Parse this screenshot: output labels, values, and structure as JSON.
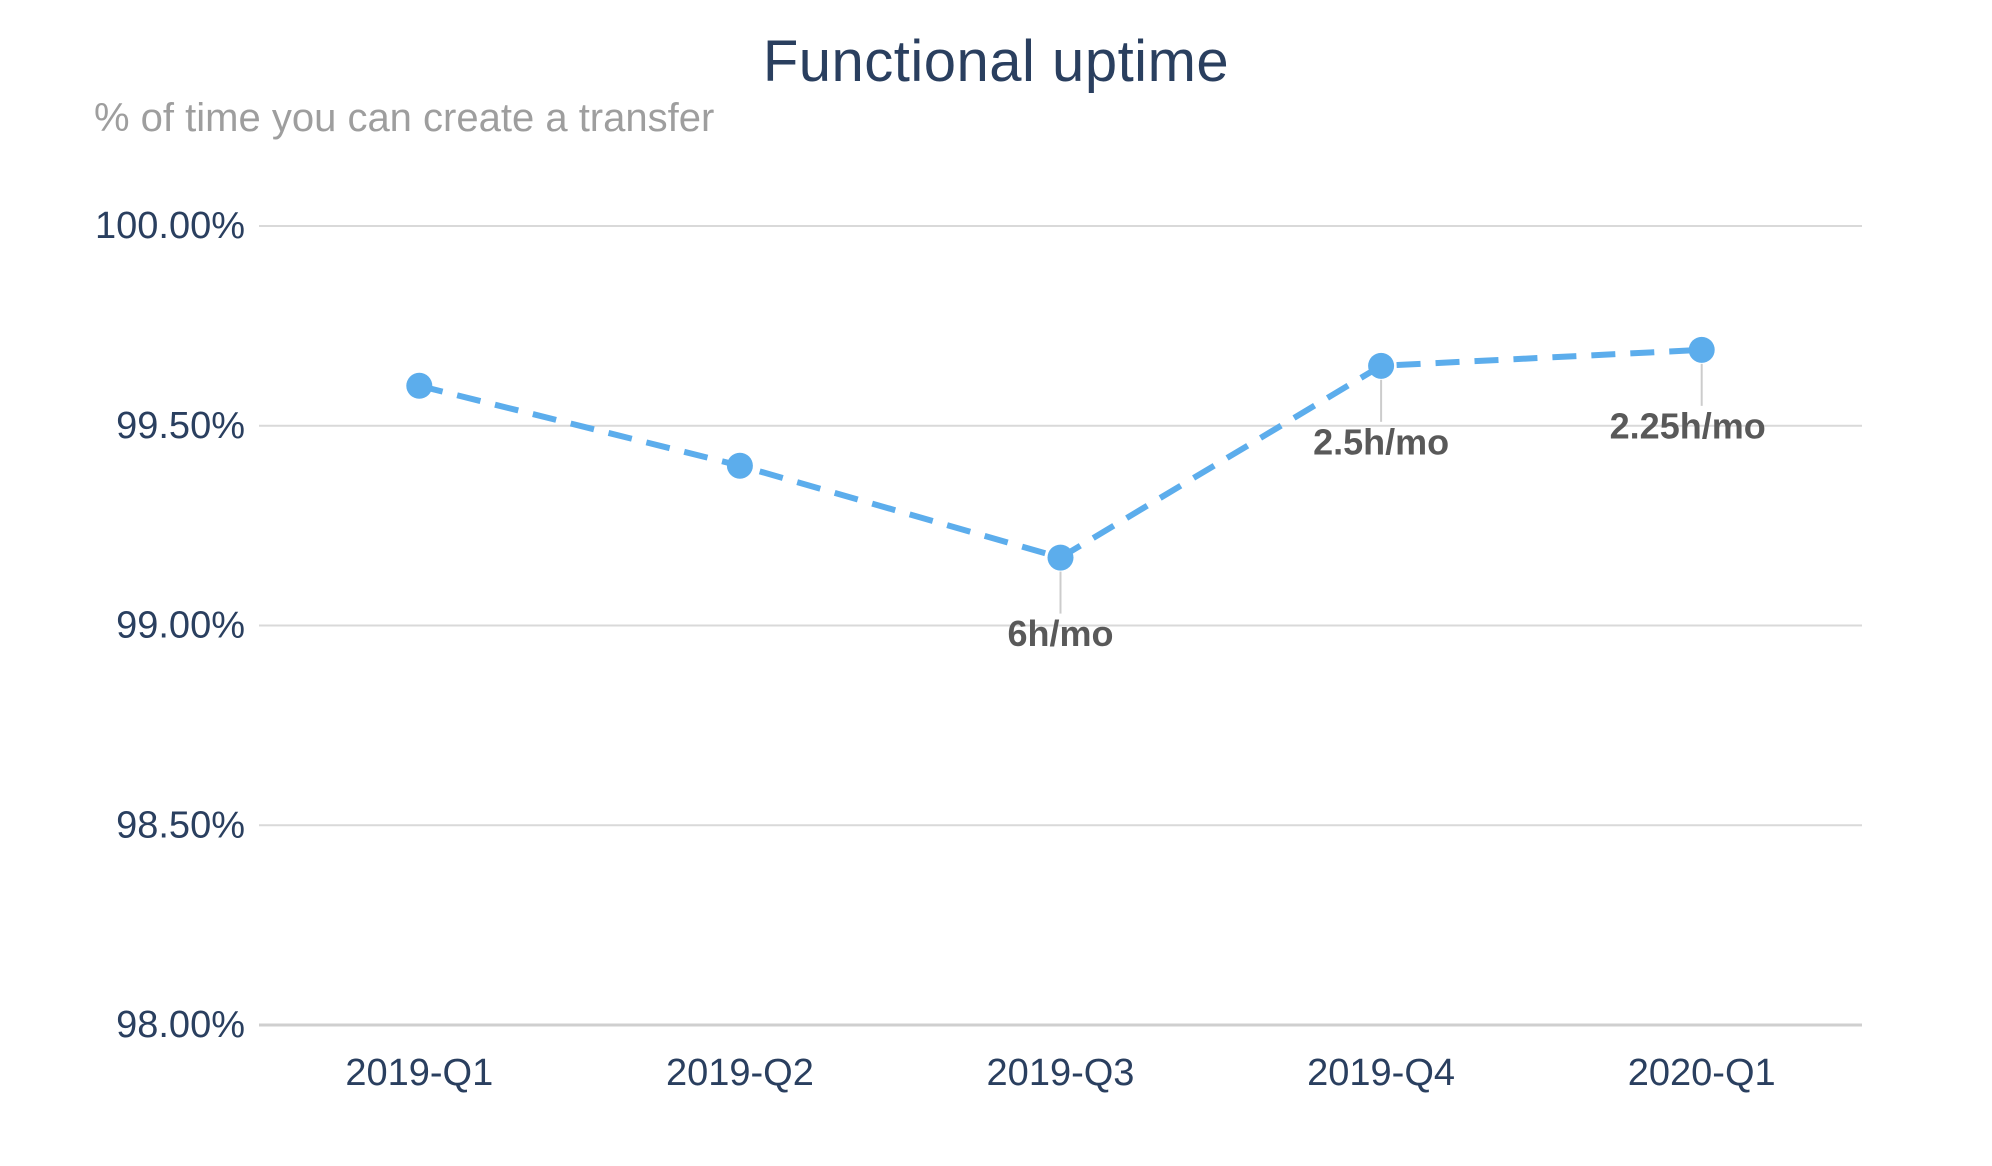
{
  "chart_data": {
    "type": "line",
    "title": "Functional uptime",
    "subtitle": "% of time you can create a transfer",
    "categories": [
      "2019-Q1",
      "2019-Q2",
      "2019-Q3",
      "2019-Q4",
      "2020-Q1"
    ],
    "series": [
      {
        "name": "Functional uptime",
        "values": [
          99.6,
          99.4,
          99.17,
          99.65,
          99.69
        ],
        "line_style": "dashed",
        "marker": "circle"
      }
    ],
    "annotations": [
      {
        "category": "2019-Q3",
        "text": "6h/mo",
        "dx": 0
      },
      {
        "category": "2019-Q4",
        "text": "2.5h/mo",
        "dx": 0
      },
      {
        "category": "2020-Q1",
        "text": "2.25h/mo",
        "dx": -14
      }
    ],
    "yticks": [
      {
        "value": 100.0,
        "label": "100.00%"
      },
      {
        "value": 99.5,
        "label": "99.50%"
      },
      {
        "value": 99.0,
        "label": "99.00%"
      },
      {
        "value": 98.5,
        "label": "98.50%"
      },
      {
        "value": 98.0,
        "label": "98.00%"
      }
    ],
    "ylim": [
      98.0,
      100.0
    ],
    "xlabel": "",
    "ylabel": "",
    "grid": true,
    "legend_position": "none",
    "colors": {
      "line": "#5cadec",
      "title_text": "#2a3f5f",
      "subtitle_text": "#9e9e9e",
      "gridline": "#d9d9d9",
      "axis_line": "#cfcfcf",
      "annotation_text": "#595959",
      "annotation_connector": "#cccccc",
      "background": "#ffffff"
    }
  }
}
